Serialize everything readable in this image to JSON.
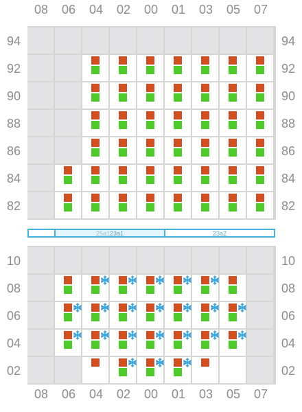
{
  "columns": [
    "08",
    "06",
    "04",
    "02",
    "00",
    "01",
    "03",
    "05",
    "07"
  ],
  "upper": {
    "rows": [
      {
        "label": "94",
        "cells": [
          "b",
          "b",
          "b",
          "b",
          "b",
          "b",
          "b",
          "b",
          "b"
        ]
      },
      {
        "label": "92",
        "cells": [
          "b",
          "b",
          "rg",
          "rg",
          "rg",
          "rg",
          "rg",
          "rg",
          "rg"
        ]
      },
      {
        "label": "90",
        "cells": [
          "b",
          "b",
          "rg",
          "rg",
          "rg",
          "rg",
          "rg",
          "rg",
          "rg"
        ]
      },
      {
        "label": "88",
        "cells": [
          "b",
          "b",
          "rg",
          "rg",
          "rg",
          "rg",
          "rg",
          "rg",
          "rg"
        ]
      },
      {
        "label": "86",
        "cells": [
          "b",
          "b",
          "rg",
          "rg",
          "rg",
          "rg",
          "rg",
          "rg",
          "rg"
        ]
      },
      {
        "label": "84",
        "cells": [
          "b",
          "rg",
          "rg",
          "rg",
          "rg",
          "rg",
          "rg",
          "rg",
          "rg"
        ]
      },
      {
        "label": "82",
        "cells": [
          "b",
          "rg",
          "rg",
          "rg",
          "rg",
          "rg",
          "rg",
          "rg",
          "rg"
        ]
      }
    ]
  },
  "bands": {
    "left_label": "25a1",
    "mid_label": "23a1",
    "right_label": "23a2"
  },
  "lower": {
    "rows": [
      {
        "label": "10",
        "cells": [
          "b",
          "b",
          "b",
          "b",
          "b",
          "b",
          "b",
          "b",
          "b"
        ]
      },
      {
        "label": "08",
        "cells": [
          "b",
          "rg",
          "rgs",
          "rgs",
          "rgs",
          "rgs",
          "rgs",
          "rg",
          "b"
        ]
      },
      {
        "label": "06",
        "cells": [
          "b",
          "rgs",
          "rgs",
          "rgs",
          "rgs",
          "rgs",
          "rgs",
          "rgs",
          "b"
        ]
      },
      {
        "label": "04",
        "cells": [
          "b",
          "rgs",
          "rgs",
          "rgs",
          "rgs",
          "rgs",
          "rgs",
          "rgs",
          "b"
        ]
      },
      {
        "label": "02",
        "cells": [
          "b",
          "b",
          "r",
          "rgs",
          "rgs",
          "rgs",
          "r",
          "o",
          "b"
        ]
      }
    ]
  },
  "colors": {
    "orange_marker": "#cf4f22",
    "green_marker": "#4fc92a",
    "snowflake": "#3aa3dc",
    "blocked_cell": "#e3e3e5",
    "band_border": "#43b1de"
  },
  "icons": {
    "orange": "orange-square-icon",
    "green": "green-square-icon",
    "snow": "snowflake-icon"
  }
}
